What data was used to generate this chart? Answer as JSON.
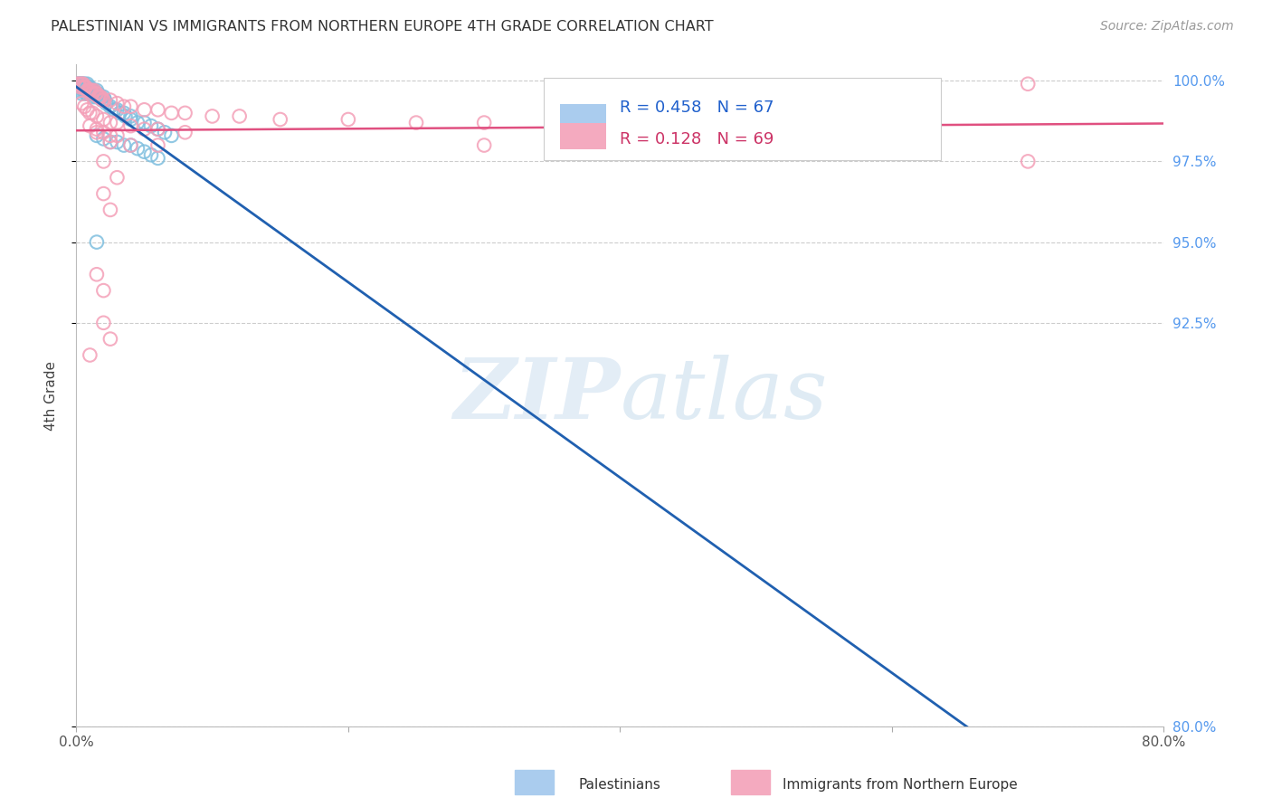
{
  "title": "PALESTINIAN VS IMMIGRANTS FROM NORTHERN EUROPE 4TH GRADE CORRELATION CHART",
  "source": "Source: ZipAtlas.com",
  "ylabel": "4th Grade",
  "xlim": [
    0.0,
    0.8
  ],
  "ylim": [
    0.8,
    1.005
  ],
  "yticks": [
    0.8,
    0.925,
    0.95,
    0.975,
    1.0
  ],
  "ytick_labels": [
    "80.0%",
    "92.5%",
    "95.0%",
    "97.5%",
    "100.0%"
  ],
  "xtick_labels": [
    "0.0%",
    "80.0%"
  ],
  "blue_R": 0.458,
  "blue_N": 67,
  "pink_R": 0.128,
  "pink_N": 69,
  "blue_scatter_color": "#7fbfdf",
  "pink_scatter_color": "#f4a0b8",
  "blue_line_color": "#2060b0",
  "pink_line_color": "#e05080",
  "legend_label_blue": "Palestinians",
  "legend_label_pink": "Immigrants from Northern Europe",
  "watermark": "ZIPatlas",
  "grid_color": "#cccccc",
  "right_tick_color": "#5599ee",
  "blue_points_x": [
    0.001,
    0.002,
    0.002,
    0.003,
    0.003,
    0.003,
    0.004,
    0.004,
    0.004,
    0.005,
    0.005,
    0.005,
    0.006,
    0.006,
    0.006,
    0.007,
    0.007,
    0.007,
    0.008,
    0.008,
    0.008,
    0.009,
    0.009,
    0.01,
    0.01,
    0.01,
    0.011,
    0.011,
    0.012,
    0.012,
    0.013,
    0.013,
    0.014,
    0.015,
    0.015,
    0.016,
    0.017,
    0.018,
    0.019,
    0.02,
    0.021,
    0.022,
    0.025,
    0.028,
    0.03,
    0.032,
    0.035,
    0.036,
    0.04,
    0.04,
    0.045,
    0.05,
    0.055,
    0.06,
    0.065,
    0.07,
    0.015,
    0.02,
    0.025,
    0.03,
    0.035,
    0.04,
    0.045,
    0.05,
    0.055,
    0.06,
    0.015
  ],
  "blue_points_y": [
    0.999,
    0.999,
    0.998,
    0.999,
    0.998,
    0.997,
    0.999,
    0.998,
    0.996,
    0.999,
    0.998,
    0.997,
    0.999,
    0.998,
    0.997,
    0.998,
    0.997,
    0.996,
    0.999,
    0.998,
    0.996,
    0.998,
    0.997,
    0.998,
    0.997,
    0.996,
    0.997,
    0.996,
    0.997,
    0.996,
    0.997,
    0.995,
    0.996,
    0.997,
    0.995,
    0.996,
    0.995,
    0.995,
    0.994,
    0.995,
    0.994,
    0.993,
    0.992,
    0.991,
    0.991,
    0.99,
    0.99,
    0.989,
    0.989,
    0.988,
    0.987,
    0.987,
    0.986,
    0.985,
    0.984,
    0.983,
    0.983,
    0.982,
    0.981,
    0.981,
    0.98,
    0.98,
    0.979,
    0.978,
    0.977,
    0.976,
    0.95
  ],
  "pink_points_x": [
    0.001,
    0.002,
    0.003,
    0.004,
    0.005,
    0.005,
    0.006,
    0.007,
    0.008,
    0.009,
    0.01,
    0.011,
    0.012,
    0.013,
    0.014,
    0.015,
    0.016,
    0.017,
    0.018,
    0.019,
    0.02,
    0.025,
    0.03,
    0.035,
    0.04,
    0.05,
    0.06,
    0.07,
    0.08,
    0.1,
    0.12,
    0.15,
    0.2,
    0.25,
    0.3,
    0.004,
    0.006,
    0.008,
    0.01,
    0.012,
    0.015,
    0.02,
    0.025,
    0.03,
    0.04,
    0.05,
    0.06,
    0.08,
    0.01,
    0.015,
    0.02,
    0.025,
    0.03,
    0.06,
    0.3,
    0.7,
    0.015,
    0.025,
    0.04,
    0.7,
    0.02,
    0.03,
    0.02,
    0.025,
    0.015,
    0.02,
    0.02,
    0.025,
    0.01
  ],
  "pink_points_y": [
    0.999,
    0.999,
    0.998,
    0.999,
    0.999,
    0.998,
    0.998,
    0.998,
    0.997,
    0.997,
    0.997,
    0.997,
    0.996,
    0.997,
    0.996,
    0.996,
    0.995,
    0.995,
    0.995,
    0.994,
    0.994,
    0.994,
    0.993,
    0.992,
    0.992,
    0.991,
    0.991,
    0.99,
    0.99,
    0.989,
    0.989,
    0.988,
    0.988,
    0.987,
    0.987,
    0.993,
    0.992,
    0.991,
    0.99,
    0.99,
    0.989,
    0.988,
    0.987,
    0.987,
    0.986,
    0.985,
    0.985,
    0.984,
    0.986,
    0.985,
    0.984,
    0.983,
    0.983,
    0.98,
    0.98,
    0.975,
    0.984,
    0.981,
    0.98,
    0.999,
    0.975,
    0.97,
    0.965,
    0.96,
    0.94,
    0.935,
    0.925,
    0.92,
    0.915
  ]
}
